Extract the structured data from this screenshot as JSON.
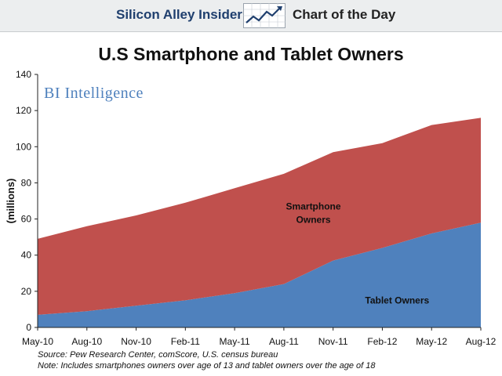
{
  "header": {
    "brand": "Silicon Alley Insider",
    "section": "Chart of the Day"
  },
  "watermark": "BI Intelligence",
  "footnotes": {
    "source": "Source: Pew Research Center, comScore, U.S. census bureau",
    "note": "Note: Includes smartphones owners over age of 13 and tablet owners over the age of 18"
  },
  "colors": {
    "smartphone": "#c0504d",
    "tablet": "#4f81bd",
    "header_brand": "#1f3f6e",
    "watermark": "#4f81bd"
  },
  "chart_data": {
    "type": "area",
    "title": "U.S Smartphone and Tablet Owners",
    "ylabel": "(millions)",
    "xlabel": "",
    "categories": [
      "May-10",
      "Aug-10",
      "Nov-10",
      "Feb-11",
      "May-11",
      "Aug-11",
      "Nov-11",
      "Feb-12",
      "May-12",
      "Aug-12"
    ],
    "ylim": [
      0,
      140
    ],
    "yticks": [
      0,
      20,
      40,
      60,
      80,
      100,
      120,
      140
    ],
    "grid": false,
    "stacked": true,
    "series": [
      {
        "name": "Tablet Owners",
        "color": "#4f81bd",
        "values": [
          7,
          9,
          12,
          15,
          19,
          24,
          37,
          44,
          52,
          58
        ]
      },
      {
        "name": "Smartphone Owners",
        "color": "#c0504d",
        "values": [
          42,
          47,
          50,
          54,
          58,
          61,
          60,
          58,
          60,
          58
        ]
      }
    ],
    "annotations": [
      {
        "series": "Smartphone Owners",
        "lines": [
          "Smartphone",
          "Owners"
        ]
      },
      {
        "series": "Tablet Owners",
        "lines": [
          "Tablet Owners"
        ]
      }
    ]
  }
}
